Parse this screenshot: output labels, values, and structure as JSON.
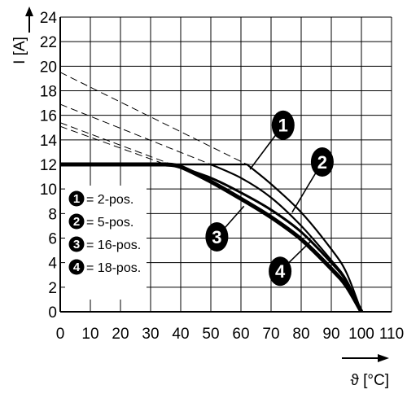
{
  "chart_data": {
    "type": "line",
    "xlabel": "ϑ [°C]",
    "ylabel": "I [A]",
    "xlim": [
      0,
      110
    ],
    "ylim": [
      0,
      24
    ],
    "x_ticks": [
      0,
      10,
      20,
      30,
      40,
      50,
      60,
      70,
      80,
      90,
      100,
      110
    ],
    "y_ticks": [
      0,
      2,
      4,
      6,
      8,
      10,
      12,
      14,
      16,
      18,
      20,
      22,
      24
    ],
    "grid": true,
    "legend_position": "bottom-left",
    "series": [
      {
        "name": "2-pos.",
        "id": "1",
        "points": [
          [
            0,
            12
          ],
          [
            62,
            12
          ],
          [
            70,
            10.4
          ],
          [
            80,
            8.1
          ],
          [
            90,
            5.1
          ],
          [
            95,
            3.2
          ],
          [
            100,
            0
          ]
        ],
        "derating_dashed": [
          [
            0,
            19.5
          ],
          [
            62,
            12
          ]
        ]
      },
      {
        "name": "5-pos.",
        "id": "2",
        "points": [
          [
            0,
            12
          ],
          [
            50,
            12
          ],
          [
            60,
            10.9
          ],
          [
            70,
            9.3
          ],
          [
            80,
            7.0
          ],
          [
            90,
            4.2
          ],
          [
            95,
            2.6
          ],
          [
            100,
            0
          ]
        ],
        "derating_dashed": [
          [
            0,
            16.9
          ],
          [
            50,
            12
          ]
        ]
      },
      {
        "name": "16-pos.",
        "id": "3",
        "points": [
          [
            0,
            12
          ],
          [
            37,
            12
          ],
          [
            50,
            10.9
          ],
          [
            60,
            9.7
          ],
          [
            70,
            8.3
          ],
          [
            80,
            6.5
          ],
          [
            90,
            4.0
          ],
          [
            95,
            2.5
          ],
          [
            100,
            0
          ]
        ],
        "derating_dashed": [
          [
            0,
            15.4
          ],
          [
            37,
            12
          ]
        ]
      },
      {
        "name": "18-pos.",
        "id": "4",
        "points": [
          [
            0,
            12
          ],
          [
            35,
            12
          ],
          [
            40,
            11.8
          ],
          [
            50,
            10.6
          ],
          [
            60,
            9.2
          ],
          [
            70,
            7.7
          ],
          [
            80,
            5.9
          ],
          [
            90,
            3.5
          ],
          [
            95,
            2.1
          ],
          [
            100,
            0
          ]
        ],
        "derating_dashed": [
          [
            0,
            15.1
          ],
          [
            35,
            12
          ]
        ]
      }
    ],
    "legend": [
      {
        "id": "1",
        "label": "= 2-pos."
      },
      {
        "id": "2",
        "label": "= 5-pos."
      },
      {
        "id": "3",
        "label": "= 16-pos."
      },
      {
        "id": "4",
        "label": "= 18-pos."
      }
    ],
    "callouts": [
      {
        "id": "1",
        "at": [
          74,
          15.2
        ],
        "points_to": [
          63,
          11.6
        ]
      },
      {
        "id": "2",
        "at": [
          87,
          12.2
        ],
        "points_to": [
          77,
          8.1
        ]
      },
      {
        "id": "3",
        "at": [
          52,
          6.1
        ],
        "points_to": [
          61,
          8.6
        ]
      },
      {
        "id": "4",
        "at": [
          73,
          3.3
        ],
        "points_to": [
          83,
          5.7
        ]
      }
    ]
  }
}
